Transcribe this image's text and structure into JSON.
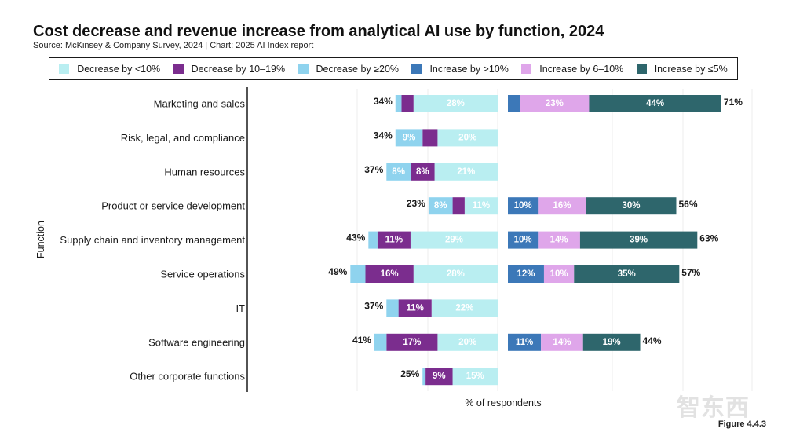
{
  "title": "Cost decrease and revenue increase from analytical AI use by function, 2024",
  "source": "Source: McKinsey & Company Survey, 2024 | Chart: 2025 AI Index report",
  "figure_label": "Figure 4.4.3",
  "watermark": "智东西",
  "colors": {
    "decrease_lt10": "#b9eef1",
    "decrease_10_19": "#7b2d8e",
    "decrease_ge20": "#8fd3ee",
    "increase_gt10": "#3c78b8",
    "increase_6_10": "#dfa6ea",
    "increase_le5": "#2e666c"
  },
  "legend": [
    {
      "label": "Decrease by <10%",
      "color": "#b9eef1"
    },
    {
      "label": "Decrease by 10–19%",
      "color": "#7b2d8e"
    },
    {
      "label": "Decrease by ≥20%",
      "color": "#8fd3ee"
    },
    {
      "label": "Increase by >10%",
      "color": "#3c78b8"
    },
    {
      "label": "Increase by 6–10%",
      "color": "#dfa6ea"
    },
    {
      "label": "Increase by ≤5%",
      "color": "#2e666c"
    }
  ],
  "chart_data": {
    "type": "bar",
    "orientation": "horizontal",
    "layout": "diverging",
    "title": "Cost decrease and revenue increase from analytical AI use by function, 2024",
    "xlabel": "% of respondents",
    "ylabel": "Function",
    "legend_position": "top",
    "grid": true,
    "categories": [
      "Marketing and sales",
      "Risk, legal, and compliance",
      "Human resources",
      "Product or service development",
      "Supply chain and inventory management",
      "Service operations",
      "IT",
      "Software engineering",
      "Other corporate functions"
    ],
    "decrease": {
      "series": [
        {
          "name": "Decrease by <10%",
          "values": [
            28,
            20,
            21,
            11,
            29,
            28,
            22,
            20,
            15
          ],
          "labels": [
            "28%",
            "20%",
            "21%",
            "11%",
            "29%",
            "28%",
            "22%",
            "20%",
            "15%"
          ]
        },
        {
          "name": "Decrease by 10–19%",
          "values": [
            4,
            5,
            8,
            4,
            11,
            16,
            11,
            17,
            9
          ],
          "labels": [
            "",
            "",
            "8%",
            "",
            "11%",
            "16%",
            "11%",
            "17%",
            "9%"
          ]
        },
        {
          "name": "Decrease by ≥20%",
          "values": [
            2,
            9,
            8,
            8,
            3,
            5,
            4,
            4,
            1
          ],
          "labels": [
            "",
            "9%",
            "8%",
            "8%",
            "",
            "",
            "",
            "",
            ""
          ]
        }
      ],
      "totals": [
        34,
        34,
        37,
        23,
        43,
        49,
        37,
        41,
        25
      ],
      "total_labels": [
        "34%",
        "34%",
        "37%",
        "23%",
        "43%",
        "49%",
        "37%",
        "41%",
        "25%"
      ]
    },
    "increase": {
      "series": [
        {
          "name": "Increase by >10%",
          "values": [
            4,
            0,
            0,
            10,
            10,
            12,
            0,
            11,
            0
          ],
          "labels": [
            "",
            "",
            "",
            "10%",
            "10%",
            "12%",
            "",
            "11%",
            ""
          ]
        },
        {
          "name": "Increase by 6–10%",
          "values": [
            23,
            0,
            0,
            16,
            14,
            10,
            0,
            14,
            0
          ],
          "labels": [
            "23%",
            "",
            "",
            "16%",
            "14%",
            "10%",
            "",
            "14%",
            ""
          ]
        },
        {
          "name": "Increase by ≤5%",
          "values": [
            44,
            0,
            0,
            30,
            39,
            35,
            0,
            19,
            0
          ],
          "labels": [
            "44%",
            "",
            "",
            "30%",
            "39%",
            "35%",
            "",
            "19%",
            ""
          ]
        }
      ],
      "totals": [
        71,
        null,
        null,
        56,
        63,
        57,
        null,
        44,
        null
      ],
      "total_labels": [
        "71%",
        "",
        "",
        "56%",
        "63%",
        "57%",
        "",
        "44%",
        ""
      ]
    }
  }
}
